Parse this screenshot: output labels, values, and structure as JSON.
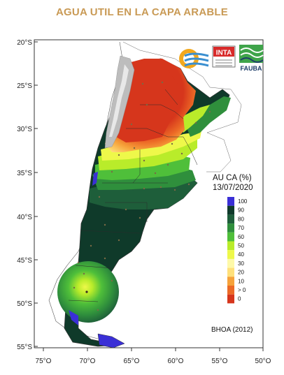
{
  "header": {
    "title": "AGUA UTIL EN LA CAPA ARABLE"
  },
  "axes": {
    "lat_labels": [
      "20°S",
      "25°S",
      "30°S",
      "35°S",
      "40°S",
      "45°S",
      "50°S",
      "55°S"
    ],
    "lon_labels": [
      "75°O",
      "70°O",
      "65°O",
      "60°O",
      "55°O",
      "50°O"
    ]
  },
  "logos": {
    "inta": "INTA",
    "fauba": "FAUBA"
  },
  "legend": {
    "title_line1": "AU CA (%)",
    "title_line2": "13/07/2020",
    "classes": [
      {
        "label": "100",
        "color": "#3a2fd6"
      },
      {
        "label": "90",
        "color": "#0f3a2a"
      },
      {
        "label": "80",
        "color": "#1e5e3a"
      },
      {
        "label": "70",
        "color": "#2f8f3c"
      },
      {
        "label": "60",
        "color": "#4fbf3a"
      },
      {
        "label": "50",
        "color": "#b9ec2a"
      },
      {
        "label": "40",
        "color": "#eef84a"
      },
      {
        "label": "30",
        "color": "#fef9a8"
      },
      {
        "label": "20",
        "color": "#ffe07a"
      },
      {
        "label": "10",
        "color": "#f6a23a"
      },
      {
        "label": "> 0",
        "color": "#ec6a26"
      },
      {
        "label": "0",
        "color": "#d6361c"
      }
    ],
    "source": "BHOA (2012)"
  }
}
